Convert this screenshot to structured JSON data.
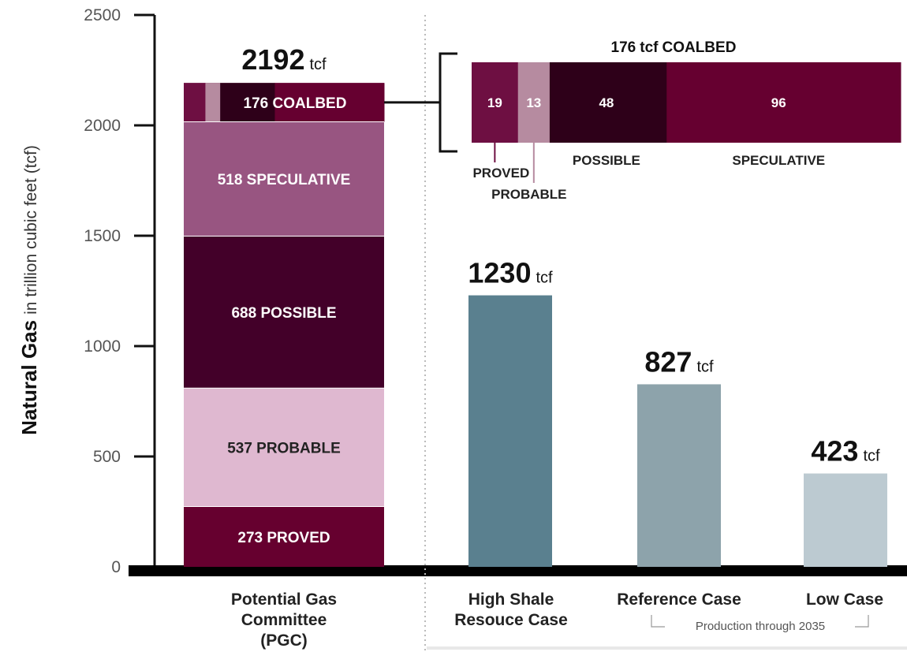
{
  "chart_data": {
    "type": "bar",
    "ylabel": {
      "bold": "Natural Gas",
      "rest": "in trillion cubic feet (tcf)"
    },
    "ylim": [
      0,
      2500
    ],
    "yticks": [
      0,
      500,
      1000,
      1500,
      2000,
      2500
    ],
    "pgc": {
      "category_lines": [
        "Potential Gas",
        "Committee",
        "(PGC)"
      ],
      "total": 2192,
      "total_unit": "tcf",
      "segments": [
        {
          "value": 273,
          "label": "273 PROVED",
          "color": "#66002f",
          "text_color": "#ffffff"
        },
        {
          "value": 537,
          "label": "537 PROBABLE",
          "color": "#dfb8d0",
          "text_color": "#222222"
        },
        {
          "value": 688,
          "label": "688 POSSIBLE",
          "color": "#430029",
          "text_color": "#ffffff"
        },
        {
          "value": 518,
          "label": "518 SPECULATIVE",
          "color": "#985581",
          "text_color": "#ffffff"
        },
        {
          "value": 176,
          "label": "176 COALBED",
          "color": "#66002f",
          "text_color": "#ffffff"
        }
      ],
      "coalbed_breakdown": {
        "title_num": "176",
        "title_unit": "tcf",
        "title_rest": "COALBED",
        "parts": [
          {
            "name": "PROVED",
            "value": 19,
            "color": "#6e0f42"
          },
          {
            "name": "PROBABLE",
            "value": 13,
            "color": "#b68ba0"
          },
          {
            "name": "POSSIBLE",
            "value": 48,
            "color": "#2e0019"
          },
          {
            "name": "SPECULATIVE",
            "value": 96,
            "color": "#660030"
          }
        ]
      }
    },
    "cases": [
      {
        "category_lines": [
          "High Shale",
          "Resouce Case"
        ],
        "value": 1230,
        "unit": "tcf",
        "color": "#5a808f"
      },
      {
        "category_lines": [
          "Reference Case"
        ],
        "value": 827,
        "unit": "tcf",
        "color": "#8da3ab"
      },
      {
        "category_lines": [
          "Low Case"
        ],
        "value": 423,
        "unit": "tcf",
        "color": "#bccad1"
      }
    ],
    "cases_note": "Production through 2035"
  }
}
